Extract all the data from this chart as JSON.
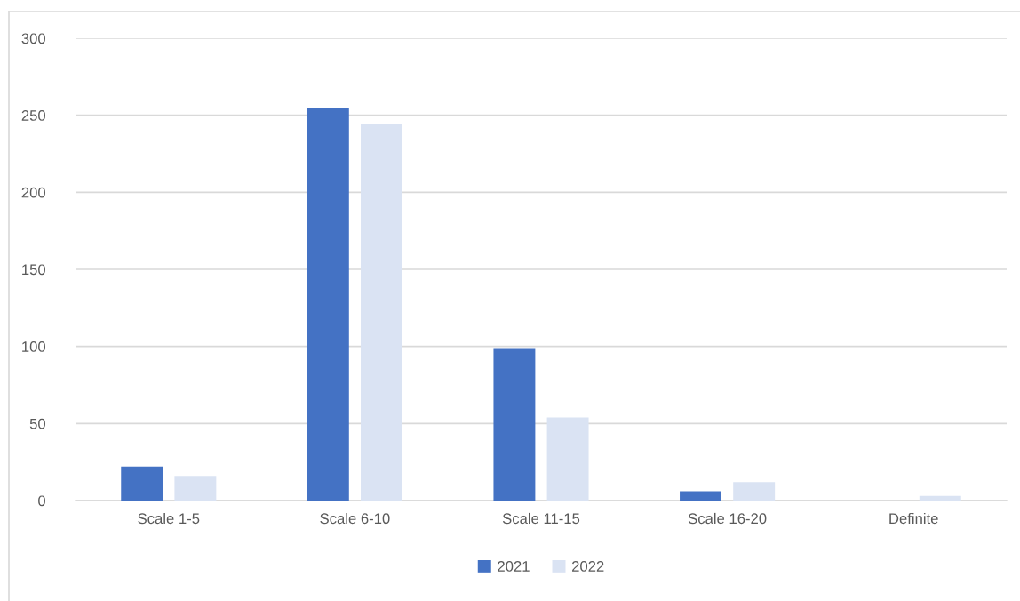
{
  "chart_data": {
    "type": "bar",
    "categories": [
      "Scale 1-5",
      "Scale 6-10",
      "Scale 11-15",
      "Scale 16-20",
      "Definite"
    ],
    "series": [
      {
        "name": "2021",
        "color": "#4472c4",
        "values": [
          22,
          255,
          99,
          6,
          0
        ]
      },
      {
        "name": "2022",
        "color": "#dae3f3",
        "values": [
          16,
          244,
          54,
          12,
          3
        ]
      }
    ],
    "ylim": [
      0,
      300
    ],
    "yticks": [
      0,
      50,
      100,
      150,
      200,
      250,
      300
    ],
    "grid": "y",
    "legend": "bottom"
  }
}
